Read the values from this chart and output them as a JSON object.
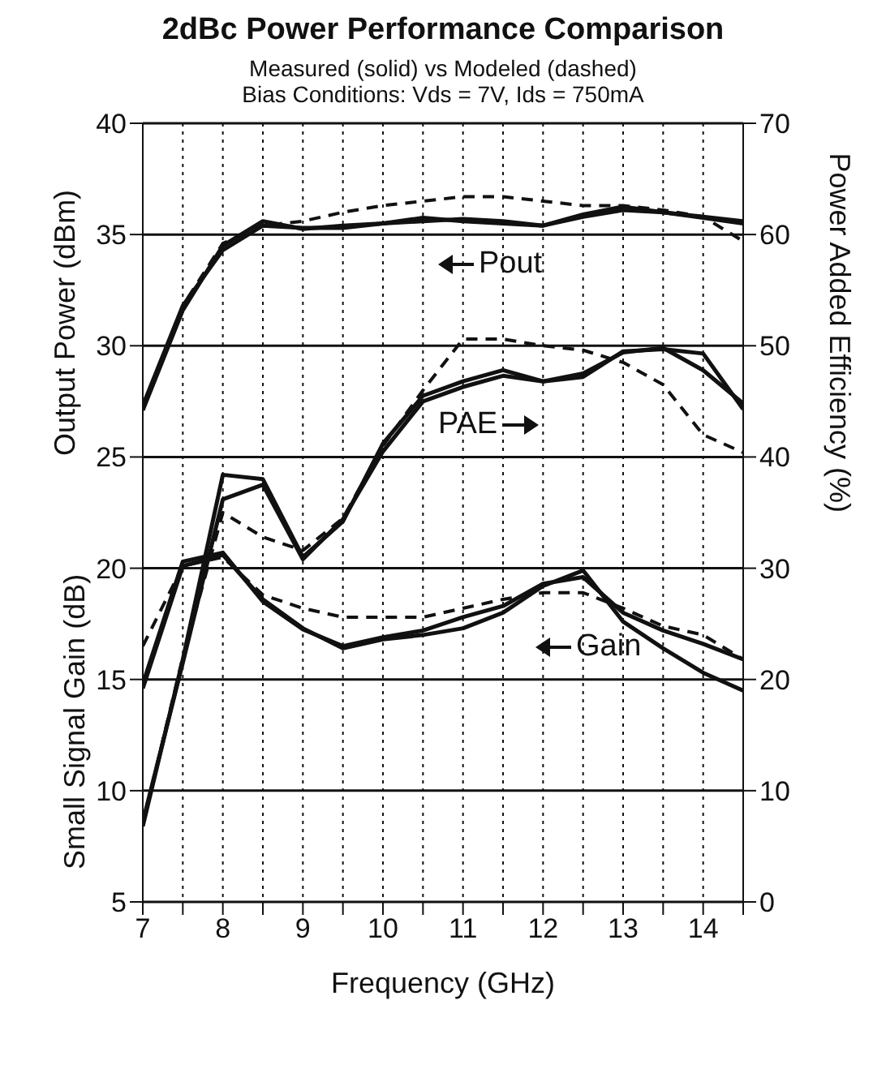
{
  "chart_data": {
    "type": "line",
    "title": "2dBc Power Performance Comparison",
    "subtitle": "Measured (solid) vs Modeled (dashed)\nBias Conditions: Vds = 7V, Ids = 750mA",
    "xlabel": "Frequency (GHz)",
    "ylabel": "Output Power (dBm)",
    "y2label": "Power Added Efficiency (%)",
    "x": [
      7,
      7.5,
      8,
      8.5,
      9,
      9.5,
      10,
      10.5,
      11,
      11.5,
      12,
      12.5,
      13,
      13.5,
      14,
      14.5
    ],
    "series": [
      {
        "color": "#111111",
        "line_style": "solid",
        "values": [
          27.1,
          31.6,
          34.5,
          35.6,
          35.25,
          35.4,
          35.5,
          35.75,
          35.6,
          35.5,
          35.4,
          35.9,
          36.25,
          36.0,
          35.75,
          35.5
        ]
      },
      {
        "color": "#111111",
        "line_style": "solid",
        "values": [
          27.3,
          31.8,
          34.3,
          35.4,
          35.3,
          35.3,
          35.5,
          35.6,
          35.7,
          35.6,
          35.4,
          35.8,
          36.1,
          36.0,
          35.8,
          35.6
        ]
      },
      {
        "color": "#111111",
        "line_style": "dashed",
        "values": [
          27.3,
          31.8,
          34.6,
          35.4,
          35.6,
          36.0,
          36.3,
          36.5,
          36.7,
          36.7,
          36.5,
          36.3,
          36.3,
          36.1,
          35.8,
          34.7
        ]
      },
      {
        "color": "#111111",
        "line_style": "solid",
        "axis": "y2",
        "values": [
          6.8,
          21.8,
          38.4,
          38.0,
          31.0,
          34.2,
          41.2,
          45.5,
          46.8,
          47.8,
          46.8,
          47.2,
          49.5,
          49.7,
          49.3,
          44.3
        ]
      },
      {
        "color": "#111111",
        "line_style": "solid",
        "axis": "y2",
        "values": [
          7.2,
          21.5,
          36.2,
          37.5,
          30.8,
          34.4,
          40.5,
          45.0,
          46.3,
          47.3,
          46.8,
          47.5,
          49.4,
          49.8,
          47.8,
          44.8
        ]
      },
      {
        "color": "#111111",
        "line_style": "dashed",
        "axis": "y2",
        "values": [
          7.0,
          22.0,
          35.0,
          32.8,
          31.6,
          34.5,
          41.0,
          46.0,
          50.6,
          50.6,
          50.0,
          49.6,
          48.5,
          46.5,
          42.0,
          40.4
        ]
      },
      {
        "color": "#111111",
        "line_style": "solid",
        "values": [
          14.8,
          20.3,
          20.7,
          18.5,
          17.25,
          16.5,
          16.9,
          17.2,
          17.8,
          18.3,
          19.3,
          19.6,
          18.0,
          17.2,
          16.6,
          15.9
        ]
      },
      {
        "color": "#111111",
        "line_style": "solid",
        "values": [
          14.6,
          20.1,
          20.6,
          18.6,
          17.3,
          16.4,
          16.8,
          17.0,
          17.3,
          18.0,
          19.2,
          19.9,
          17.6,
          16.4,
          15.3,
          14.5
        ]
      },
      {
        "color": "#111111",
        "line_style": "dashed",
        "values": [
          16.5,
          20.1,
          20.5,
          18.8,
          18.2,
          17.8,
          17.8,
          17.8,
          18.2,
          18.6,
          18.9,
          18.9,
          18.2,
          17.4,
          17.0,
          15.9
        ]
      }
    ],
    "xlim": [
      7,
      14.5
    ],
    "xticks": [
      7,
      {
        "value": 7.5,
        "label": null
      },
      8,
      {
        "value": 8.5,
        "label": null
      },
      9,
      {
        "value": 9.5,
        "label": null
      },
      10,
      {
        "value": 10.5,
        "label": null
      },
      11,
      {
        "value": 11.5,
        "label": null
      },
      12,
      {
        "value": 12.5,
        "label": null
      },
      13,
      {
        "value": 13.5,
        "label": null
      },
      14,
      {
        "value": 14.5,
        "label": null
      }
    ],
    "ylim": [
      5,
      40
    ],
    "yticks": [
      5,
      10,
      15,
      20,
      25,
      30,
      35,
      40
    ],
    "y2lim": [
      0,
      70
    ],
    "y2ticks": [
      0,
      10,
      20,
      30,
      40,
      50,
      60,
      70
    ],
    "grid": true,
    "legend": false,
    "marker": "none",
    "annotations": [
      "Pout",
      "PAE",
      "Gain",
      "Small Signal Gain (dB)"
    ]
  }
}
